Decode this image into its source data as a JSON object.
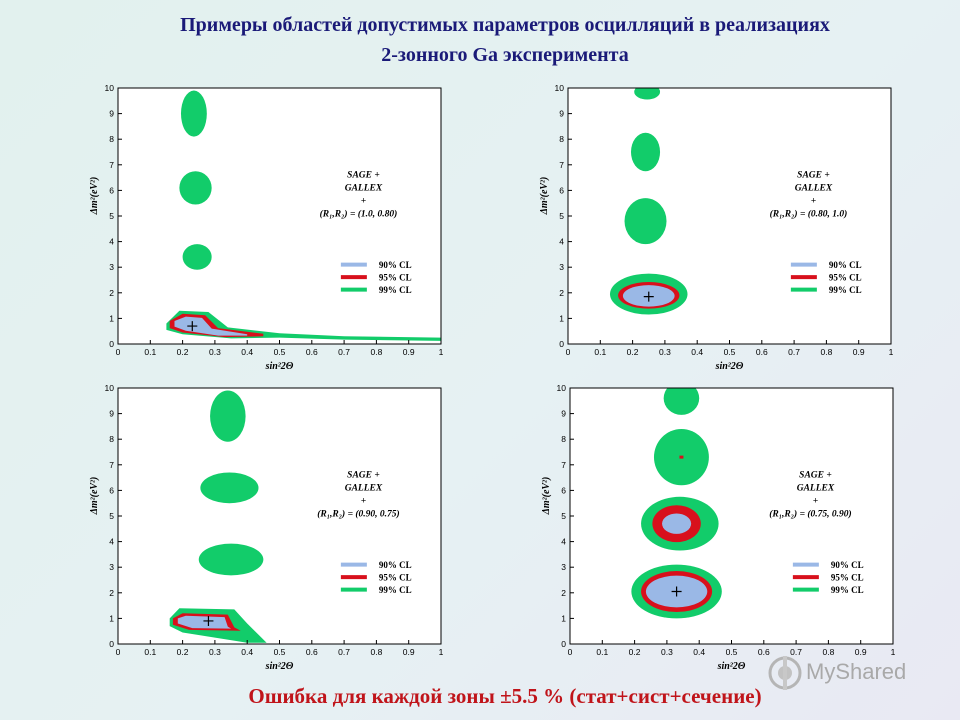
{
  "title_lines": [
    "Примеры областей допустимых параметров осцилляций в реализациях",
    "2-зонного Ga эксперимента"
  ],
  "footer": "Ошибка для каждой зоны ±5.5 % (стат+сист+сечение)",
  "watermark": "MyShared",
  "colors": {
    "cl90": "#9ab8e6",
    "cl95": "#d8101c",
    "cl99": "#12cc6a",
    "title": "#1a1a78",
    "footer": "#c0141a"
  },
  "chart_data": [
    {
      "type": "contour",
      "xlabel": "sin²2Θ",
      "ylabel": "Δm²(eV²)",
      "xlim": [
        0,
        1
      ],
      "ylim": [
        0,
        10
      ],
      "x_ticks": [
        "0",
        "0.1",
        "0.2",
        "0.3",
        "0.4",
        "0.5",
        "0.6",
        "0.7",
        "0.8",
        "0.9",
        "1"
      ],
      "y_ticks": [
        "0",
        "1",
        "2",
        "3",
        "4",
        "5",
        "6",
        "7",
        "8",
        "9",
        "10"
      ],
      "annotation": [
        "SAGE +",
        "GALLEX",
        "+",
        "(R₁,R₂) = (1.0, 0.80)"
      ],
      "legend": [
        "90% CL",
        "95% CL",
        "99% CL"
      ],
      "best_fit": {
        "x": 0.23,
        "y": 0.7
      },
      "regions": [
        {
          "cl": "99%",
          "shape": "blob",
          "cx": 0.235,
          "cy": 9.0,
          "rx": 0.04,
          "ry": 0.9
        },
        {
          "cl": "99%",
          "shape": "blob",
          "cx": 0.24,
          "cy": 6.1,
          "rx": 0.05,
          "ry": 0.65
        },
        {
          "cl": "99%",
          "shape": "blob",
          "cx": 0.245,
          "cy": 3.4,
          "rx": 0.045,
          "ry": 0.5
        },
        {
          "cl": "99%",
          "shape": "path",
          "points": [
            [
              0.15,
              0.8
            ],
            [
              0.19,
              1.3
            ],
            [
              0.28,
              1.25
            ],
            [
              0.34,
              0.65
            ],
            [
              0.5,
              0.42
            ],
            [
              0.7,
              0.3
            ],
            [
              1.0,
              0.25
            ],
            [
              1.0,
              0.12
            ],
            [
              0.7,
              0.17
            ],
            [
              0.5,
              0.25
            ],
            [
              0.35,
              0.22
            ],
            [
              0.2,
              0.38
            ],
            [
              0.15,
              0.55
            ]
          ]
        },
        {
          "cl": "95%",
          "shape": "path",
          "points": [
            [
              0.16,
              0.9
            ],
            [
              0.2,
              1.18
            ],
            [
              0.27,
              1.12
            ],
            [
              0.31,
              0.62
            ],
            [
              0.45,
              0.4
            ],
            [
              0.45,
              0.3
            ],
            [
              0.33,
              0.27
            ],
            [
              0.2,
              0.45
            ],
            [
              0.16,
              0.62
            ]
          ]
        },
        {
          "cl": "90%",
          "shape": "path",
          "points": [
            [
              0.175,
              0.9
            ],
            [
              0.21,
              1.07
            ],
            [
              0.26,
              1.02
            ],
            [
              0.29,
              0.6
            ],
            [
              0.4,
              0.38
            ],
            [
              0.4,
              0.33
            ],
            [
              0.31,
              0.33
            ],
            [
              0.21,
              0.52
            ],
            [
              0.175,
              0.68
            ]
          ]
        }
      ]
    },
    {
      "type": "contour",
      "xlabel": "sin²2Θ",
      "ylabel": "Δm²(eV²)",
      "xlim": [
        0,
        1
      ],
      "ylim": [
        0,
        10
      ],
      "x_ticks": [
        "0",
        "0.1",
        "0.2",
        "0.3",
        "0.4",
        "0.5",
        "0.6",
        "0.7",
        "0.8",
        "0.9",
        "1"
      ],
      "y_ticks": [
        "0",
        "1",
        "2",
        "3",
        "4",
        "5",
        "6",
        "7",
        "8",
        "9",
        "10"
      ],
      "annotation": [
        "SAGE +",
        "GALLEX",
        "+",
        "(R₁,R₂) = (0.80, 1.0)"
      ],
      "legend": [
        "90% CL",
        "95% CL",
        "99% CL"
      ],
      "best_fit": {
        "x": 0.25,
        "y": 1.85
      },
      "regions": [
        {
          "cl": "99%",
          "shape": "blob",
          "cx": 0.245,
          "cy": 9.85,
          "rx": 0.04,
          "ry": 0.3
        },
        {
          "cl": "99%",
          "shape": "blob",
          "cx": 0.24,
          "cy": 7.5,
          "rx": 0.045,
          "ry": 0.75
        },
        {
          "cl": "99%",
          "shape": "blob",
          "cx": 0.24,
          "cy": 4.8,
          "rx": 0.065,
          "ry": 0.9
        },
        {
          "cl": "99%",
          "shape": "blob",
          "cx": 0.25,
          "cy": 1.95,
          "rx": 0.12,
          "ry": 0.8
        },
        {
          "cl": "95%",
          "shape": "blob",
          "cx": 0.25,
          "cy": 1.9,
          "rx": 0.095,
          "ry": 0.52
        },
        {
          "cl": "90%",
          "shape": "blob",
          "cx": 0.25,
          "cy": 1.88,
          "rx": 0.08,
          "ry": 0.42
        }
      ]
    },
    {
      "type": "contour",
      "xlabel": "sin²2Θ",
      "ylabel": "Δm²(eV²)",
      "xlim": [
        0,
        1
      ],
      "ylim": [
        0,
        10
      ],
      "x_ticks": [
        "0",
        "0.1",
        "0.2",
        "0.3",
        "0.4",
        "0.5",
        "0.6",
        "0.7",
        "0.8",
        "0.9",
        "1"
      ],
      "y_ticks": [
        "0",
        "1",
        "2",
        "3",
        "4",
        "5",
        "6",
        "7",
        "8",
        "9",
        "10"
      ],
      "annotation": [
        "SAGE +",
        "GALLEX",
        "+",
        "(R₁,R₂) = (0.90, 0.75)"
      ],
      "legend": [
        "90% CL",
        "95% CL",
        "99% CL"
      ],
      "best_fit": {
        "x": 0.28,
        "y": 0.9
      },
      "regions": [
        {
          "cl": "99%",
          "shape": "blob",
          "cx": 0.34,
          "cy": 8.9,
          "rx": 0.055,
          "ry": 1.0
        },
        {
          "cl": "99%",
          "shape": "blob",
          "cx": 0.345,
          "cy": 6.1,
          "rx": 0.09,
          "ry": 0.6
        },
        {
          "cl": "99%",
          "shape": "blob",
          "cx": 0.35,
          "cy": 3.3,
          "rx": 0.1,
          "ry": 0.62
        },
        {
          "cl": "99%",
          "shape": "path",
          "points": [
            [
              0.16,
              1.0
            ],
            [
              0.19,
              1.4
            ],
            [
              0.36,
              1.35
            ],
            [
              0.4,
              0.8
            ],
            [
              0.46,
              0.05
            ],
            [
              0.4,
              0.05
            ],
            [
              0.2,
              0.45
            ],
            [
              0.16,
              0.7
            ]
          ]
        },
        {
          "cl": "95%",
          "shape": "path",
          "points": [
            [
              0.17,
              1.0
            ],
            [
              0.2,
              1.2
            ],
            [
              0.34,
              1.15
            ],
            [
              0.36,
              0.65
            ],
            [
              0.38,
              0.52
            ],
            [
              0.22,
              0.55
            ],
            [
              0.17,
              0.75
            ]
          ]
        },
        {
          "cl": "90%",
          "shape": "path",
          "points": [
            [
              0.185,
              1.0
            ],
            [
              0.21,
              1.1
            ],
            [
              0.33,
              1.05
            ],
            [
              0.34,
              0.68
            ],
            [
              0.35,
              0.6
            ],
            [
              0.23,
              0.62
            ],
            [
              0.185,
              0.8
            ]
          ]
        }
      ]
    },
    {
      "type": "contour",
      "xlabel": "sin²2Θ",
      "ylabel": "Δm²(eV²)",
      "xlim": [
        0,
        1
      ],
      "ylim": [
        0,
        10
      ],
      "x_ticks": [
        "0",
        "0.1",
        "0.2",
        "0.3",
        "0.4",
        "0.5",
        "0.6",
        "0.7",
        "0.8",
        "0.9",
        "1"
      ],
      "y_ticks": [
        "0",
        "1",
        "2",
        "3",
        "4",
        "5",
        "6",
        "7",
        "8",
        "9",
        "10"
      ],
      "annotation": [
        "SAGE +",
        "GALLEX",
        "+",
        "(R₁,R₂) = (0.75, 0.90)"
      ],
      "legend": [
        "90% CL",
        "95% CL",
        "99% CL"
      ],
      "best_fit": {
        "x": 0.33,
        "y": 2.05
      },
      "regions": [
        {
          "cl": "99%",
          "shape": "blob",
          "cx": 0.345,
          "cy": 9.6,
          "rx": 0.055,
          "ry": 0.65
        },
        {
          "cl": "99%",
          "shape": "blob",
          "cx": 0.345,
          "cy": 7.3,
          "rx": 0.085,
          "ry": 1.1
        },
        {
          "cl": "99%",
          "shape": "blob",
          "cx": 0.34,
          "cy": 4.7,
          "rx": 0.12,
          "ry": 1.05
        },
        {
          "cl": "99%",
          "shape": "blob",
          "cx": 0.33,
          "cy": 2.05,
          "rx": 0.14,
          "ry": 1.05
        },
        {
          "cl": "95%",
          "shape": "blob",
          "cx": 0.33,
          "cy": 4.7,
          "rx": 0.075,
          "ry": 0.72
        },
        {
          "cl": "95%",
          "shape": "blob",
          "cx": 0.33,
          "cy": 2.05,
          "rx": 0.11,
          "ry": 0.8
        },
        {
          "cl": "90%",
          "shape": "blob",
          "cx": 0.33,
          "cy": 4.7,
          "rx": 0.045,
          "ry": 0.4
        },
        {
          "cl": "90%",
          "shape": "blob",
          "cx": 0.33,
          "cy": 2.05,
          "rx": 0.095,
          "ry": 0.62
        },
        {
          "cl": "95%",
          "shape": "dot",
          "cx": 0.345,
          "cy": 7.3
        }
      ]
    }
  ]
}
